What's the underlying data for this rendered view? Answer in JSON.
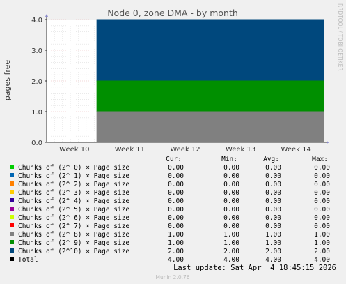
{
  "chart_data": {
    "type": "area",
    "stacked": true,
    "title": "Node 0, zone DMA - by month",
    "ylabel": "pages free",
    "watermark": "RRDTOOL / TOBI OETIKER",
    "ylim": [
      0,
      4.0
    ],
    "yticks": [
      "0.0",
      "1.0",
      "2.0",
      "3.0",
      "4.0"
    ],
    "xticks": [
      "Week 10",
      "Week 11",
      "Week 12",
      "Week 13",
      "Week 14"
    ],
    "x_start_fraction": 0.18,
    "series": [
      {
        "name": "Chunks of (2^ 0) × Page size",
        "color": "#00cc00",
        "cur": "0.00",
        "min": "0.00",
        "avg": "0.00",
        "max": "0.00",
        "value": 0
      },
      {
        "name": "Chunks of (2^ 1) × Page size",
        "color": "#0066b3",
        "cur": "0.00",
        "min": "0.00",
        "avg": "0.00",
        "max": "0.00",
        "value": 0
      },
      {
        "name": "Chunks of (2^ 2) × Page size",
        "color": "#ff8000",
        "cur": "0.00",
        "min": "0.00",
        "avg": "0.00",
        "max": "0.00",
        "value": 0
      },
      {
        "name": "Chunks of (2^ 3) × Page size",
        "color": "#ffcc00",
        "cur": "0.00",
        "min": "0.00",
        "avg": "0.00",
        "max": "0.00",
        "value": 0
      },
      {
        "name": "Chunks of (2^ 4) × Page size",
        "color": "#330099",
        "cur": "0.00",
        "min": "0.00",
        "avg": "0.00",
        "max": "0.00",
        "value": 0
      },
      {
        "name": "Chunks of (2^ 5) × Page size",
        "color": "#990099",
        "cur": "0.00",
        "min": "0.00",
        "avg": "0.00",
        "max": "0.00",
        "value": 0
      },
      {
        "name": "Chunks of (2^ 6) × Page size",
        "color": "#ccff00",
        "cur": "0.00",
        "min": "0.00",
        "avg": "0.00",
        "max": "0.00",
        "value": 0
      },
      {
        "name": "Chunks of (2^ 7) × Page size",
        "color": "#ff0000",
        "cur": "0.00",
        "min": "0.00",
        "avg": "0.00",
        "max": "0.00",
        "value": 0
      },
      {
        "name": "Chunks of (2^ 8) × Page size",
        "color": "#808080",
        "cur": "1.00",
        "min": "1.00",
        "avg": "1.00",
        "max": "1.00",
        "value": 1
      },
      {
        "name": "Chunks of (2^ 9) × Page size",
        "color": "#008f00",
        "cur": "1.00",
        "min": "1.00",
        "avg": "1.00",
        "max": "1.00",
        "value": 1
      },
      {
        "name": "Chunks of (2^10) × Page size",
        "color": "#00487d",
        "cur": "2.00",
        "min": "2.00",
        "avg": "2.00",
        "max": "2.00",
        "value": 2
      }
    ],
    "total": {
      "name": "Total",
      "color": "#000000",
      "cur": "4.00",
      "min": "4.00",
      "avg": "4.00",
      "max": "4.00"
    },
    "columns": [
      "Cur:",
      "Min:",
      "Avg:",
      "Max:"
    ]
  },
  "last_update": "Last update: Sat Apr  4 18:45:15 2026",
  "footer": "Munin 2.0.76"
}
